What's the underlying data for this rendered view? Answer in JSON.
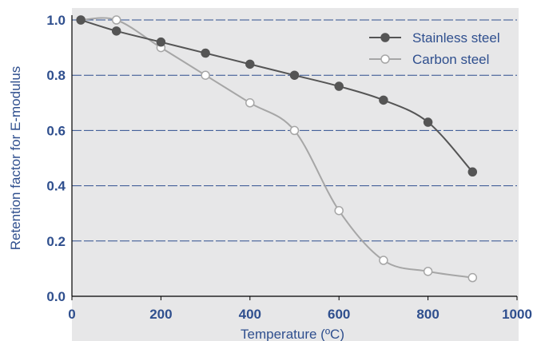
{
  "chart_data": {
    "type": "line",
    "title": "",
    "xlabel": "Temperature (ºC)",
    "ylabel": "Retention factor for E-modulus",
    "xlim": [
      0,
      1000
    ],
    "ylim": [
      0.0,
      1.0
    ],
    "x_ticks": [
      0,
      200,
      400,
      600,
      800,
      1000
    ],
    "y_ticks": [
      0.0,
      0.2,
      0.4,
      0.6,
      0.8,
      1.0
    ],
    "x_tick_labels": [
      "0",
      "200",
      "400",
      "600",
      "800",
      "1000"
    ],
    "y_tick_labels": [
      "0.0",
      "0.2",
      "0.4",
      "0.6",
      "0.8",
      "1.0"
    ],
    "grid": "horizontal dashed",
    "legend_position": "top-right",
    "series": [
      {
        "name": "Stainless steel",
        "marker": "filled-circle",
        "color": "#555555",
        "x": [
          20,
          100,
          200,
          300,
          400,
          500,
          600,
          700,
          800,
          900
        ],
        "y": [
          1.0,
          0.96,
          0.92,
          0.88,
          0.84,
          0.8,
          0.76,
          0.71,
          0.63,
          0.45
        ]
      },
      {
        "name": "Carbon steel",
        "marker": "open-circle",
        "color": "#a6a6a6",
        "x": [
          20,
          100,
          200,
          300,
          400,
          500,
          600,
          700,
          800,
          900
        ],
        "y": [
          1.0,
          1.0,
          0.9,
          0.8,
          0.7,
          0.6,
          0.31,
          0.13,
          0.09,
          0.0675
        ]
      }
    ],
    "colors": {
      "background": "#e7e7e8",
      "text": "#2f4f8e",
      "gridline": "#2f4f8e"
    }
  }
}
